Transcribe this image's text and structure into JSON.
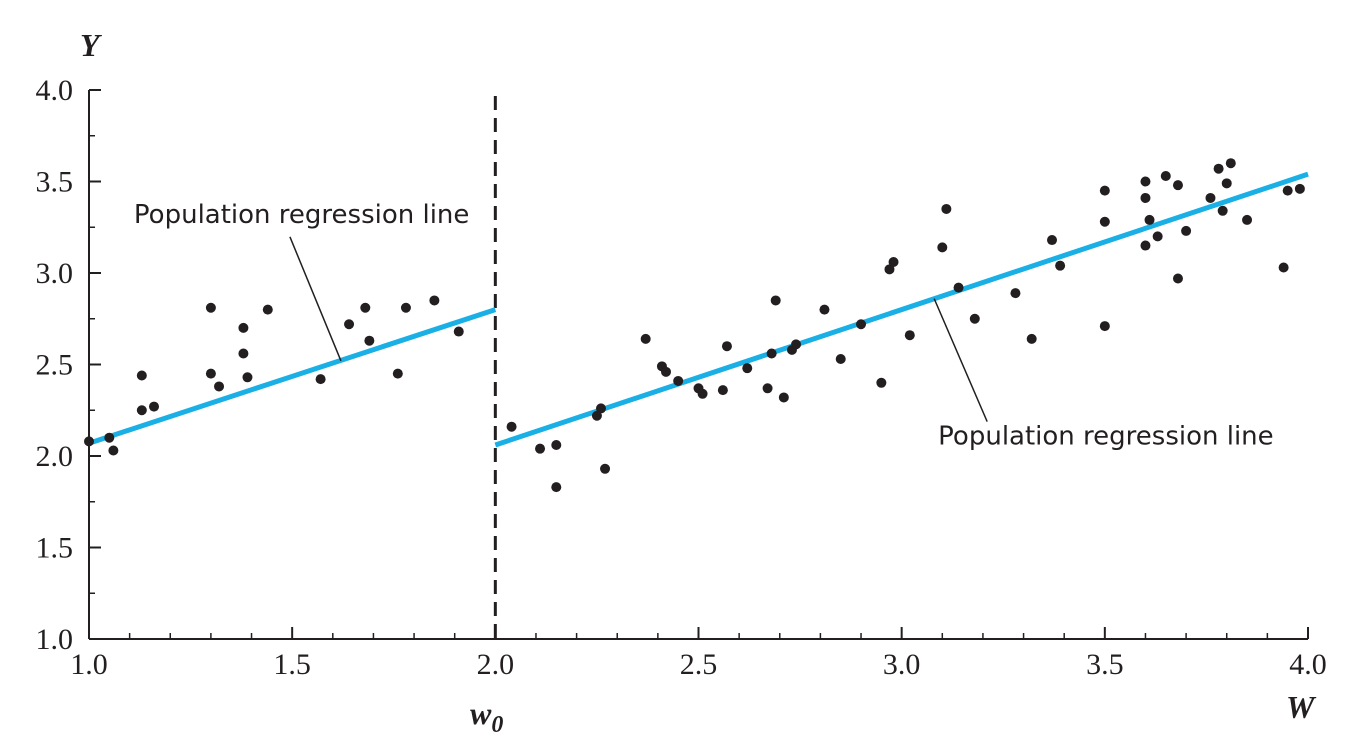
{
  "chart_data": {
    "type": "scatter",
    "title": "",
    "xlabel": "W",
    "ylabel": "Y",
    "xlim": [
      1.0,
      4.0
    ],
    "ylim": [
      1.0,
      4.0
    ],
    "x_ticks": [
      "1.0",
      "1.5",
      "2.0",
      "2.5",
      "3.0",
      "3.5",
      "4.0"
    ],
    "y_ticks": [
      "1.0",
      "1.5",
      "2.0",
      "2.5",
      "3.0",
      "3.5",
      "4.0"
    ],
    "grid": false,
    "threshold": {
      "x": 2.0,
      "label_base": "w",
      "label_sub": "0",
      "style": "dashed"
    },
    "regression_lines": [
      {
        "x": [
          1.0,
          2.0
        ],
        "y": [
          2.07,
          2.8
        ]
      },
      {
        "x": [
          2.0,
          4.0
        ],
        "y": [
          2.06,
          3.54
        ]
      }
    ],
    "line_color": "#1ab0e6",
    "point_color": "#231f20",
    "annotations": [
      {
        "text": "Population regression line",
        "point_x": 1.62,
        "point_y": 2.52,
        "anchor": "upper-left"
      },
      {
        "text": "Population regression line",
        "point_x": 3.08,
        "point_y": 2.86,
        "anchor": "lower-right"
      }
    ],
    "points": [
      [
        1.0,
        2.08
      ],
      [
        1.05,
        2.1
      ],
      [
        1.06,
        2.03
      ],
      [
        1.13,
        2.44
      ],
      [
        1.13,
        2.25
      ],
      [
        1.16,
        2.27
      ],
      [
        1.3,
        2.81
      ],
      [
        1.3,
        2.45
      ],
      [
        1.32,
        2.38
      ],
      [
        1.38,
        2.7
      ],
      [
        1.38,
        2.56
      ],
      [
        1.39,
        2.43
      ],
      [
        1.44,
        2.8
      ],
      [
        1.57,
        2.42
      ],
      [
        1.64,
        2.72
      ],
      [
        1.68,
        2.81
      ],
      [
        1.69,
        2.63
      ],
      [
        1.76,
        2.45
      ],
      [
        1.78,
        2.81
      ],
      [
        1.85,
        2.85
      ],
      [
        1.91,
        2.68
      ],
      [
        2.04,
        2.16
      ],
      [
        2.11,
        2.04
      ],
      [
        2.15,
        2.06
      ],
      [
        2.15,
        1.83
      ],
      [
        2.25,
        2.22
      ],
      [
        2.26,
        2.26
      ],
      [
        2.27,
        1.93
      ],
      [
        2.37,
        2.64
      ],
      [
        2.41,
        2.49
      ],
      [
        2.42,
        2.46
      ],
      [
        2.45,
        2.41
      ],
      [
        2.5,
        2.37
      ],
      [
        2.51,
        2.34
      ],
      [
        2.56,
        2.36
      ],
      [
        2.57,
        2.6
      ],
      [
        2.62,
        2.48
      ],
      [
        2.67,
        2.37
      ],
      [
        2.68,
        2.56
      ],
      [
        2.69,
        2.85
      ],
      [
        2.71,
        2.32
      ],
      [
        2.73,
        2.58
      ],
      [
        2.74,
        2.61
      ],
      [
        2.81,
        2.8
      ],
      [
        2.85,
        2.53
      ],
      [
        2.9,
        2.72
      ],
      [
        2.95,
        2.4
      ],
      [
        2.97,
        3.02
      ],
      [
        2.98,
        3.06
      ],
      [
        3.02,
        2.66
      ],
      [
        3.1,
        3.14
      ],
      [
        3.11,
        3.35
      ],
      [
        3.14,
        2.92
      ],
      [
        3.18,
        2.75
      ],
      [
        3.28,
        2.89
      ],
      [
        3.32,
        2.64
      ],
      [
        3.37,
        3.18
      ],
      [
        3.39,
        3.04
      ],
      [
        3.5,
        3.45
      ],
      [
        3.5,
        3.28
      ],
      [
        3.5,
        2.71
      ],
      [
        3.6,
        3.5
      ],
      [
        3.6,
        3.41
      ],
      [
        3.6,
        3.15
      ],
      [
        3.61,
        3.29
      ],
      [
        3.63,
        3.2
      ],
      [
        3.65,
        3.53
      ],
      [
        3.68,
        3.48
      ],
      [
        3.68,
        2.97
      ],
      [
        3.7,
        3.23
      ],
      [
        3.76,
        3.41
      ],
      [
        3.78,
        3.57
      ],
      [
        3.79,
        3.34
      ],
      [
        3.8,
        3.49
      ],
      [
        3.81,
        3.6
      ],
      [
        3.85,
        3.29
      ],
      [
        3.94,
        3.03
      ],
      [
        3.95,
        3.45
      ],
      [
        3.98,
        3.46
      ]
    ]
  }
}
